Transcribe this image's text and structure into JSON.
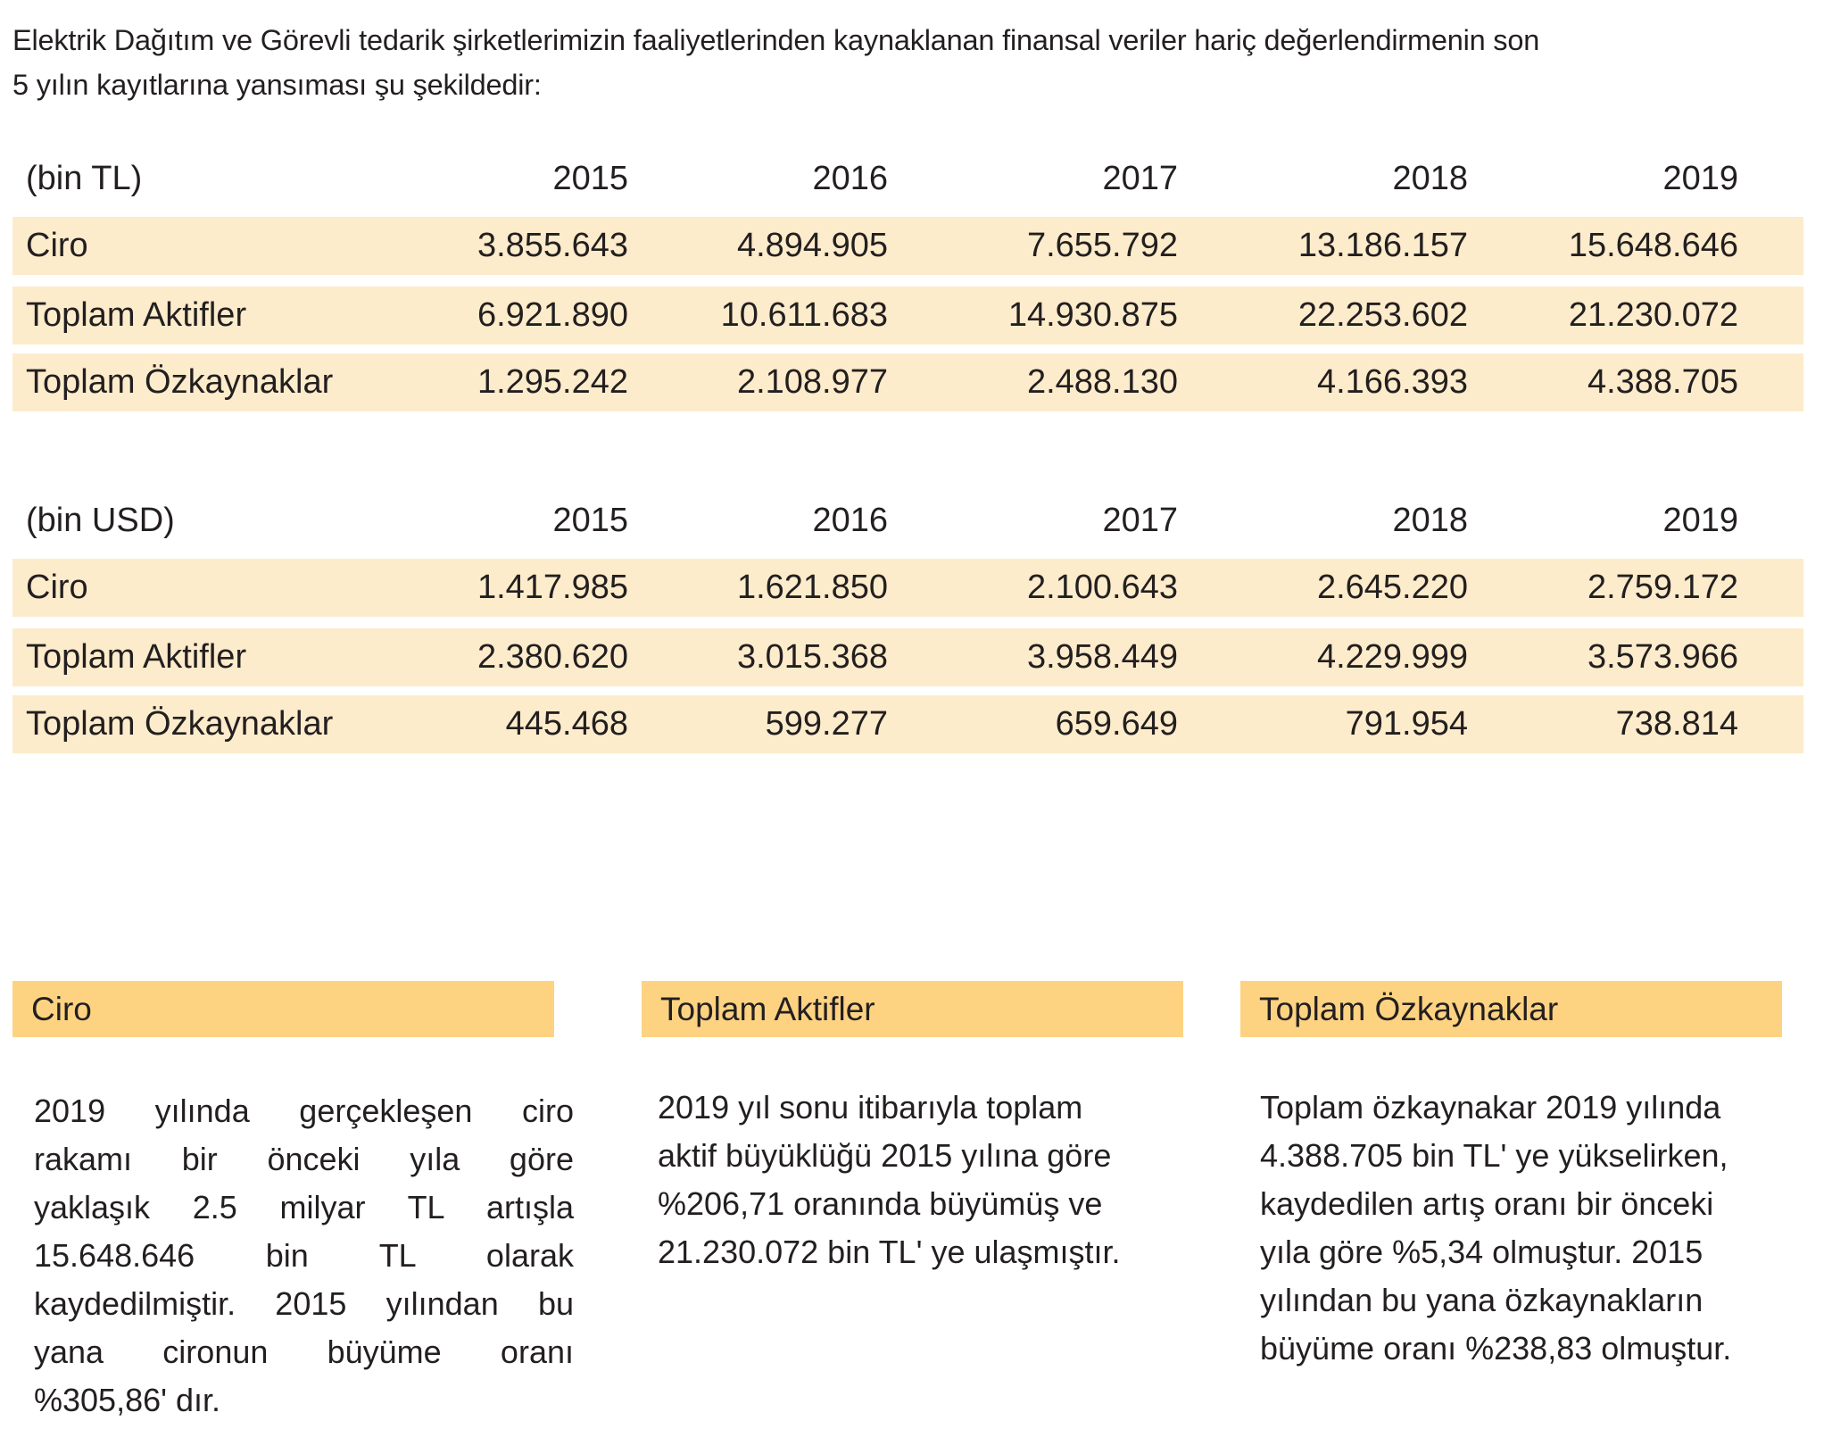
{
  "intro": {
    "lines": [
      "Elektrik Dağıtım ve Görevli tedarik şirketlerimizin faaliyetlerinden kaynaklanan finansal veriler hariç  değerlendirmenin son",
      "5 yılın kayıtlarına yansıması şu şekildedir:"
    ]
  },
  "tables": [
    {
      "unit": "(bin TL)",
      "years": [
        "2015",
        "2016",
        "2017",
        "2018",
        "2019"
      ],
      "rows": [
        {
          "label": "Ciro",
          "values": [
            "3.855.643",
            "4.894.905",
            "7.655.792",
            "13.186.157",
            "15.648.646"
          ]
        },
        {
          "label": "Toplam Aktifler",
          "values": [
            "6.921.890",
            "10.611.683",
            "14.930.875",
            "22.253.602",
            "21.230.072"
          ]
        },
        {
          "label": "Toplam Özkaynaklar",
          "values": [
            "1.295.242",
            "2.108.977",
            "2.488.130",
            "4.166.393",
            "4.388.705"
          ]
        }
      ]
    },
    {
      "unit": "(bin USD)",
      "years": [
        "2015",
        "2016",
        "2017",
        "2018",
        "2019"
      ],
      "rows": [
        {
          "label": "Ciro",
          "values": [
            "1.417.985",
            "1.621.850",
            "2.100.643",
            "2.645.220",
            "2.759.172"
          ]
        },
        {
          "label": "Toplam Aktifler",
          "values": [
            "2.380.620",
            "3.015.368",
            "3.958.449",
            "4.229.999",
            "3.573.966"
          ]
        },
        {
          "label": "Toplam Özkaynaklar",
          "values": [
            "445.468",
            "599.277",
            "659.649",
            "791.954",
            "738.814"
          ]
        }
      ]
    }
  ],
  "sections": [
    {
      "title": "Ciro",
      "lines": [
        "2019 yılında gerçekleşen ciro",
        "rakamı bir önceki yıla göre",
        "yaklaşık 2.5 milyar TL artışla",
        "15.648.646 bin TL olarak",
        "kaydedilmiştir. 2015 yılından bu",
        "yana cironun büyüme oranı",
        "%305,86' dır."
      ]
    },
    {
      "title": "Toplam Aktifler",
      "lines": [
        "2019 yıl sonu itibarıyla toplam",
        "aktif büyüklüğü 2015 yılına göre",
        "%206,71 oranında büyümüş ve",
        "21.230.072 bin TL' ye ulaşmıştır."
      ]
    },
    {
      "title": "Toplam Özkaynaklar",
      "lines": [
        "Toplam özkaynakar 2019 yılında",
        "4.388.705 bin TL' ye yükselirken,",
        "kaydedilen artış oranı bir önceki",
        "yıla göre %5,34 olmuştur. 2015",
        "yılından bu yana özkaynakların",
        "büyüme oranı %238,83 olmuştur."
      ]
    }
  ],
  "colors": {
    "row_band": "#fdeccb",
    "section_header": "#fdd382",
    "text": "#231f20"
  }
}
